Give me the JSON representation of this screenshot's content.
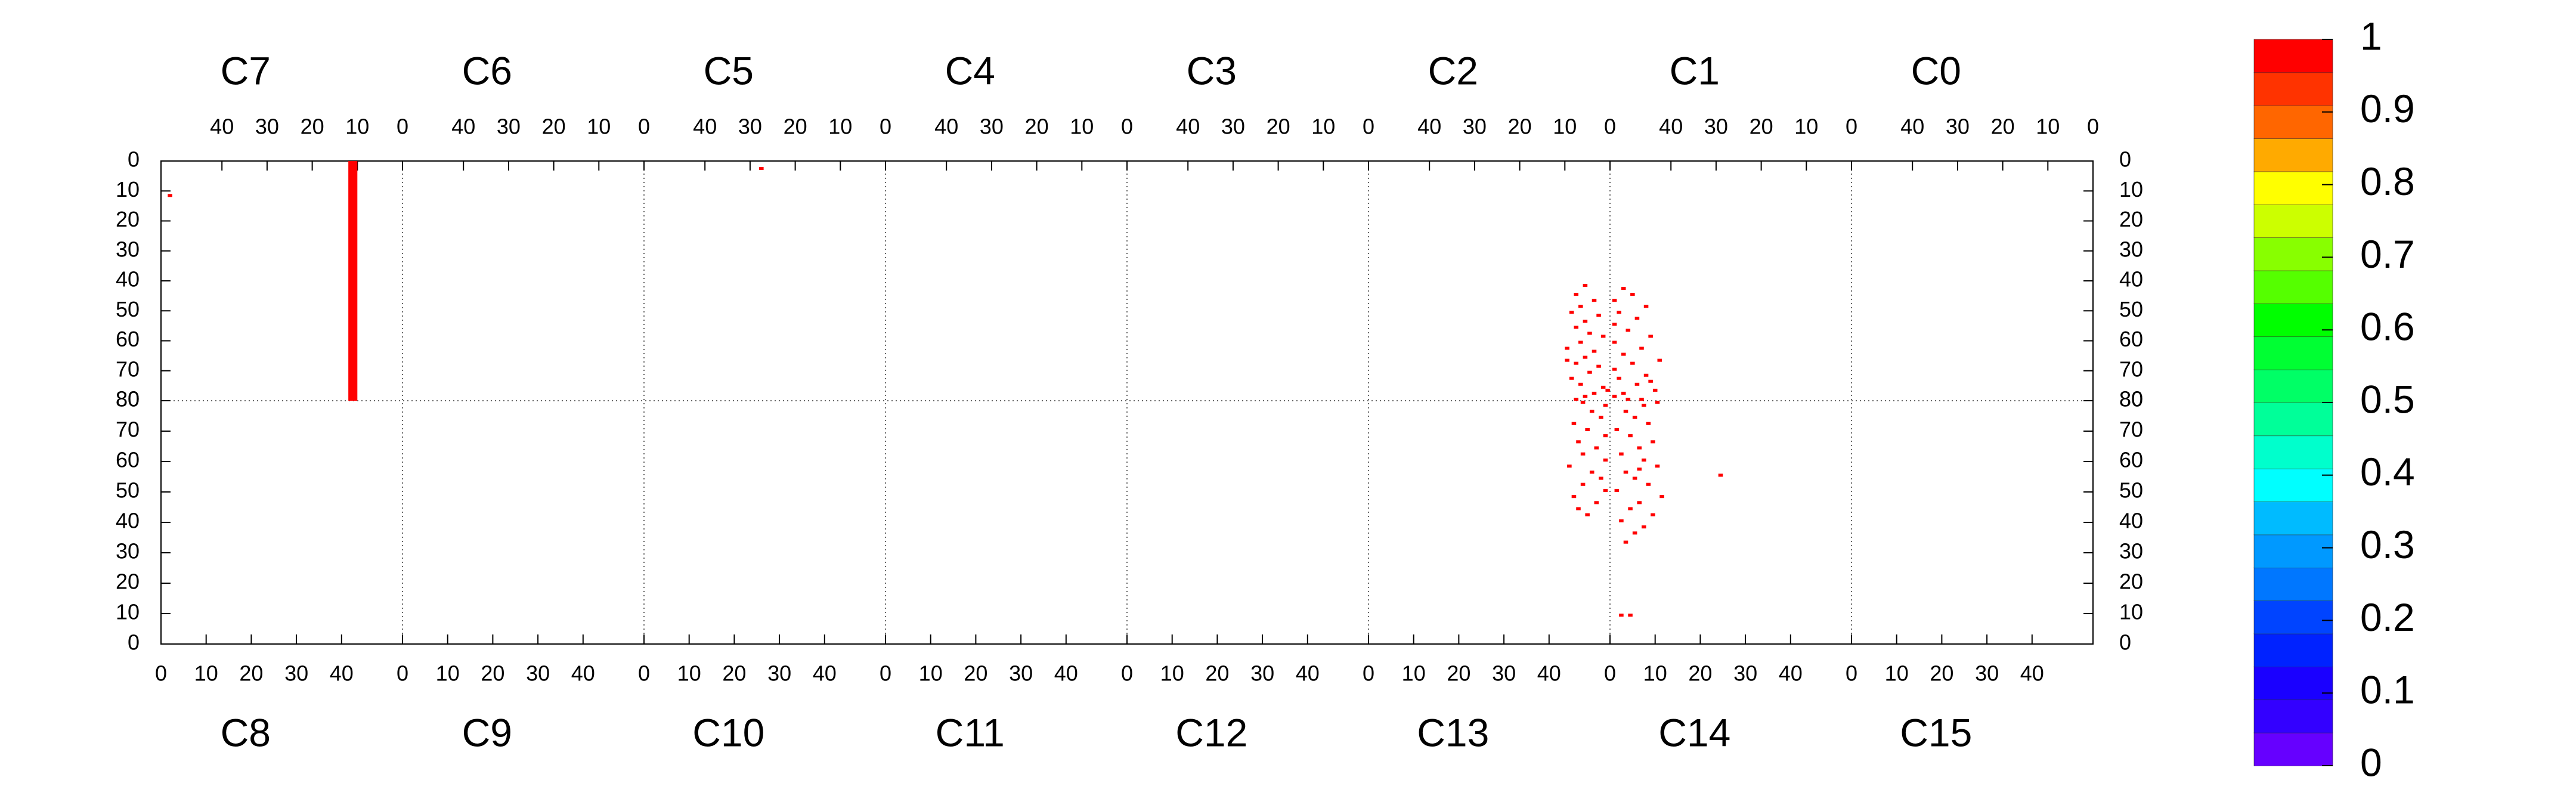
{
  "chart_data": {
    "type": "heatmap",
    "top_chips": [
      "C7",
      "C6",
      "C5",
      "C4",
      "C3",
      "C2",
      "C1",
      "C0"
    ],
    "bottom_chips": [
      "C8",
      "C9",
      "C10",
      "C11",
      "C12",
      "C13",
      "C14",
      "C15"
    ],
    "xlim": [
      0,
      53.5
    ],
    "xticks": [
      0,
      10,
      20,
      30,
      40
    ],
    "ylim": [
      0,
      80
    ],
    "yticks": [
      0,
      10,
      20,
      30,
      40,
      50,
      60,
      70,
      80
    ],
    "zlim": [
      0,
      1
    ],
    "zticks": [
      0,
      0.1,
      0.2,
      0.3,
      0.4,
      0.5,
      0.6,
      0.7,
      0.8,
      0.9,
      1
    ],
    "palette": [
      "#6600ff",
      "#3300ff",
      "#1a00ff",
      "#0022ff",
      "#0044ff",
      "#0077ff",
      "#0099ff",
      "#00bbff",
      "#00ffff",
      "#00ffcc",
      "#00ff99",
      "#00ff66",
      "#00ff33",
      "#00ff00",
      "#55ff00",
      "#88ff00",
      "#ccff00",
      "#ffff00",
      "#ffaa00",
      "#ff6600",
      "#ff3300",
      "#ff0000"
    ],
    "grid": true,
    "hits": {
      "chip": [
        "C7",
        "C7",
        "C5",
        "C2",
        "C2",
        "C2",
        "C2",
        "C2",
        "C2",
        "C2",
        "C2",
        "C2",
        "C2",
        "C2",
        "C2",
        "C2",
        "C2",
        "C2",
        "C2",
        "C2",
        "C2",
        "C2",
        "C2",
        "C2",
        "C2",
        "C2",
        "C2",
        "C2",
        "C1",
        "C1",
        "C1",
        "C1",
        "C1",
        "C1",
        "C1",
        "C1",
        "C1",
        "C1",
        "C1",
        "C1",
        "C1",
        "C1",
        "C1",
        "C1",
        "C1",
        "C1",
        "C1",
        "C1",
        "C1",
        "C1",
        "C1",
        "C1",
        "C13",
        "C13",
        "C13",
        "C13",
        "C13",
        "C13",
        "C13",
        "C13",
        "C13",
        "C13",
        "C13",
        "C13",
        "C13",
        "C13",
        "C13",
        "C13",
        "C13",
        "C13",
        "C13",
        "C13",
        "C14",
        "C14",
        "C14",
        "C14",
        "C14",
        "C14",
        "C14",
        "C14",
        "C14",
        "C14",
        "C14",
        "C14",
        "C14",
        "C14",
        "C14",
        "C14",
        "C14",
        "C14",
        "C14",
        "C14",
        "C14",
        "C14",
        "C14",
        "C14",
        "C14",
        "C14",
        "C14",
        "C14"
      ],
      "x0": [
        10,
        51,
        27,
        5,
        7,
        3,
        6,
        8,
        2,
        5,
        7,
        4,
        1,
        6,
        9,
        3,
        5,
        7,
        2,
        4,
        8,
        6,
        1,
        3,
        5,
        7,
        0,
        9,
        50,
        48,
        52,
        45,
        51,
        47,
        52,
        49,
        44,
        52,
        46,
        50,
        42,
        48,
        52,
        45,
        51,
        47,
        43,
        50,
        52,
        46,
        49,
        44,
        48,
        46,
        50,
        45,
        52,
        47,
        51,
        49,
        44,
        52,
        47,
        50,
        46,
        52,
        48,
        45,
        51,
        49,
        52,
        47,
        3,
        5,
        7,
        2,
        9,
        4,
        6,
        11,
        1,
        8,
        5,
        3,
        10,
        7,
        2,
        6,
        9,
        4,
        1,
        8,
        5,
        3,
        7,
        10,
        6,
        2,
        4,
        24
      ],
      "x1": [
        12,
        52,
        28,
        6,
        8,
        4,
        7,
        9,
        3,
        6,
        8,
        5,
        2,
        7,
        10,
        4,
        6,
        8,
        3,
        5,
        9,
        7,
        2,
        4,
        6,
        8,
        1,
        10,
        51,
        49,
        53,
        46,
        52,
        48,
        53,
        50,
        45,
        53,
        47,
        51,
        43,
        49,
        53,
        46,
        52,
        48,
        44,
        51,
        53,
        47,
        50,
        45,
        49,
        47,
        51,
        46,
        53,
        48,
        52,
        50,
        45,
        53,
        48,
        51,
        47,
        53,
        49,
        46,
        52,
        50,
        53,
        48,
        4,
        6,
        8,
        3,
        10,
        5,
        7,
        12,
        2,
        9,
        6,
        4,
        11,
        8,
        3,
        7,
        10,
        5,
        2,
        9,
        6,
        4,
        8,
        11,
        7,
        3,
        5,
        25
      ],
      "y0": [
        0,
        11,
        2,
        41,
        44,
        46,
        48,
        50,
        51,
        53,
        55,
        57,
        58,
        60,
        62,
        63,
        65,
        67,
        68,
        70,
        72,
        74,
        75,
        77,
        78,
        79,
        76,
        66,
        42,
        44,
        46,
        48,
        50,
        52,
        54,
        56,
        58,
        60,
        62,
        64,
        66,
        67,
        69,
        71,
        72,
        74,
        76,
        77,
        78,
        79,
        79,
        73,
        42,
        44,
        46,
        48,
        50,
        52,
        54,
        56,
        58,
        60,
        62,
        64,
        66,
        68,
        70,
        72,
        74,
        76,
        78,
        79,
        33,
        36,
        38,
        40,
        42,
        44,
        46,
        48,
        50,
        52,
        54,
        56,
        58,
        60,
        62,
        64,
        66,
        68,
        70,
        72,
        74,
        76,
        78,
        79,
        57,
        9,
        9,
        55
      ],
      "y1": [
        80,
        12,
        3,
        42,
        45,
        47,
        49,
        51,
        52,
        54,
        56,
        58,
        59,
        61,
        63,
        64,
        66,
        68,
        69,
        71,
        73,
        75,
        76,
        78,
        79,
        80,
        77,
        67,
        43,
        45,
        47,
        49,
        51,
        53,
        55,
        57,
        59,
        61,
        63,
        65,
        67,
        68,
        70,
        72,
        73,
        75,
        77,
        78,
        79,
        80,
        80,
        74,
        43,
        45,
        47,
        49,
        51,
        53,
        55,
        57,
        59,
        61,
        63,
        65,
        67,
        69,
        71,
        73,
        75,
        77,
        79,
        80,
        34,
        37,
        39,
        41,
        43,
        45,
        47,
        49,
        51,
        53,
        55,
        57,
        59,
        61,
        63,
        65,
        67,
        69,
        71,
        73,
        75,
        77,
        79,
        80,
        58,
        10,
        10,
        56
      ],
      "values": [
        1,
        1,
        1,
        1,
        1,
        1,
        1,
        1,
        1,
        1,
        1,
        1,
        1,
        1,
        1,
        1,
        1,
        1,
        1,
        1,
        1,
        1,
        1,
        1,
        1,
        1,
        1,
        1,
        1,
        1,
        1,
        1,
        1,
        1,
        1,
        1,
        1,
        1,
        1,
        1,
        1,
        1,
        1,
        1,
        1,
        1,
        1,
        1,
        1,
        1,
        1,
        1,
        1,
        1,
        1,
        1,
        1,
        1,
        1,
        1,
        1,
        1,
        1,
        1,
        1,
        1,
        1,
        1,
        1,
        1,
        1,
        1,
        1,
        1,
        1,
        1,
        1,
        1,
        1,
        1,
        1,
        1,
        1,
        1,
        1,
        1,
        1,
        1,
        1,
        1,
        1,
        1,
        1,
        1,
        1,
        1,
        1,
        1,
        1,
        1
      ]
    }
  }
}
